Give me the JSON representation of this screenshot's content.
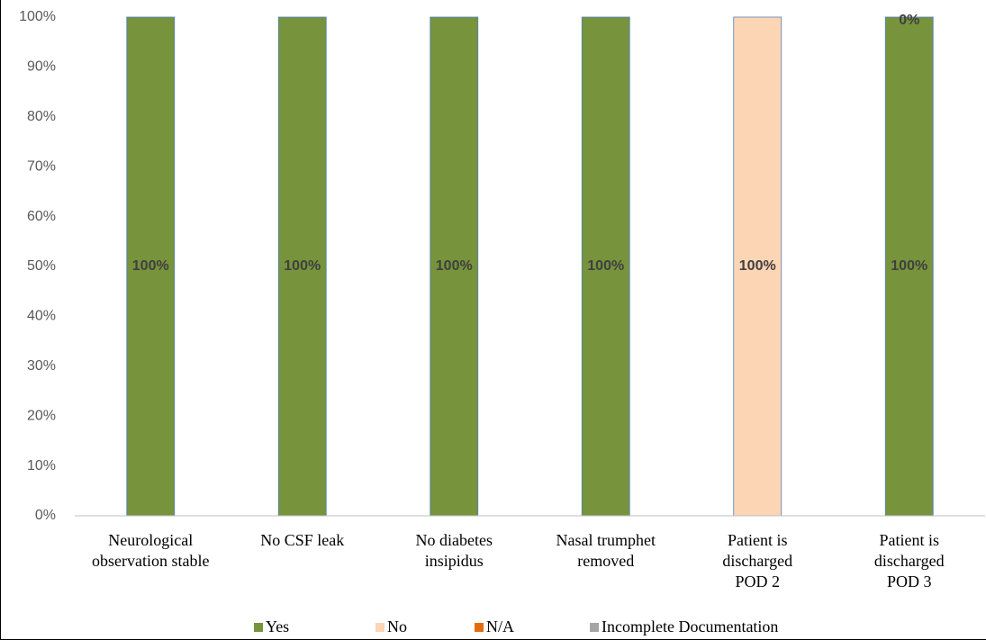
{
  "chart_data": {
    "type": "stacked_bar",
    "categories": [
      [
        "Neurological",
        "observation stable"
      ],
      [
        "No CSF leak"
      ],
      [
        "No diabetes",
        "insipidus"
      ],
      [
        "Nasal trumphet",
        "removed"
      ],
      [
        "Patient is",
        "discharged",
        "POD 2"
      ],
      [
        "Patient is",
        "discharged",
        "POD 3"
      ]
    ],
    "series": [
      {
        "name": "Yes",
        "color": "#77933c",
        "values": [
          100,
          100,
          100,
          100,
          0,
          100
        ],
        "value_labels": [
          "100%",
          "100%",
          "100%",
          "100%",
          null,
          "100%"
        ]
      },
      {
        "name": "No",
        "color": "#fcd5b5",
        "values": [
          0,
          0,
          0,
          0,
          100,
          0
        ],
        "value_labels": [
          null,
          null,
          null,
          null,
          "100%",
          "0%"
        ]
      },
      {
        "name": "N/A",
        "color": "#e46c0a",
        "values": [
          0,
          0,
          0,
          0,
          0,
          0
        ]
      },
      {
        "name": "Incomplete Documentation",
        "color": "#a6a6a6",
        "values": [
          0,
          0,
          0,
          0,
          0,
          0
        ]
      }
    ],
    "ylim": [
      0,
      100
    ],
    "yticks": [
      {
        "value": 0,
        "label": "0%"
      },
      {
        "value": 10,
        "label": "10%"
      },
      {
        "value": 20,
        "label": "20%"
      },
      {
        "value": 30,
        "label": "30%"
      },
      {
        "value": 40,
        "label": "40%"
      },
      {
        "value": 50,
        "label": "50%"
      },
      {
        "value": 60,
        "label": "60%"
      },
      {
        "value": 70,
        "label": "70%"
      },
      {
        "value": 80,
        "label": "80%"
      },
      {
        "value": 90,
        "label": "90%"
      },
      {
        "value": 100,
        "label": "100%"
      }
    ],
    "grid": false,
    "legend": "bottom"
  }
}
